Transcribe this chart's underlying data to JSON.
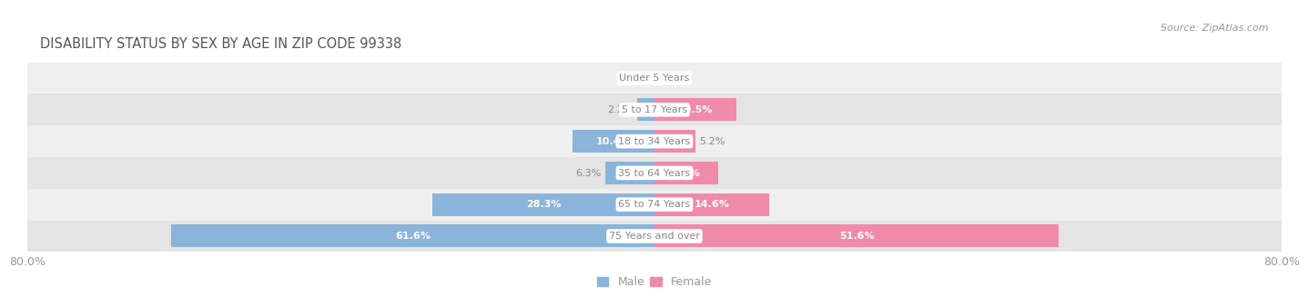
{
  "title": "DISABILITY STATUS BY SEX BY AGE IN ZIP CODE 99338",
  "source": "Source: ZipAtlas.com",
  "categories": [
    "Under 5 Years",
    "5 to 17 Years",
    "18 to 34 Years",
    "35 to 64 Years",
    "65 to 74 Years",
    "75 Years and over"
  ],
  "male_values": [
    0.0,
    2.2,
    10.4,
    6.3,
    28.3,
    61.6
  ],
  "female_values": [
    0.0,
    10.5,
    5.2,
    8.1,
    14.6,
    51.6
  ],
  "male_color": "#8ab4d9",
  "female_color": "#f08aaa",
  "male_label": "Male",
  "female_label": "Female",
  "axis_max": 80.0,
  "axis_min": -80.0,
  "bar_height": 0.72,
  "bg_chart_color": "#e8e8e8",
  "row_colors": [
    "#e4e4e4",
    "#efefef"
  ],
  "title_bg_color": "#ffffff",
  "title_color": "#555555",
  "label_color": "#999999",
  "value_color_inside": "#ffffff",
  "value_color_outside": "#888888",
  "center_label_color": "#888888",
  "threshold": 8.0
}
